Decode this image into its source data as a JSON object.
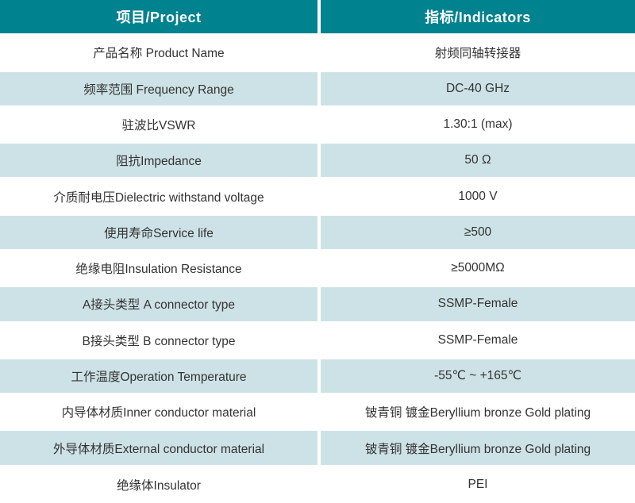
{
  "colors": {
    "header_bg": "#00828F",
    "header_text": "#FFFFFF",
    "row_bg": "#FFFFFF",
    "row_alt_bg": "#CDE2E6",
    "body_text": "#333333"
  },
  "header": {
    "project": "项目/Project",
    "indicators": "指标/Indicators"
  },
  "rows": [
    {
      "project": "产品名称 Product Name",
      "indicator": "射频同轴转接器"
    },
    {
      "project": "频率范围 Frequency Range",
      "indicator": "DC-40 GHz"
    },
    {
      "project": "驻波比VSWR",
      "indicator": "1.30:1 (max)"
    },
    {
      "project": "阻抗Impedance",
      "indicator": "50 Ω"
    },
    {
      "project": "介质耐电压Dielectric withstand voltage",
      "indicator": "1000 V"
    },
    {
      "project": "使用寿命Service life",
      "indicator": "≥500"
    },
    {
      "project": "绝缘电阻Insulation Resistance",
      "indicator": "≥5000MΩ"
    },
    {
      "project": "A接头类型 A connector type",
      "indicator": "SSMP-Female"
    },
    {
      "project": "B接头类型 B connector type",
      "indicator": "SSMP-Female"
    },
    {
      "project": "工作温度Operation Temperature",
      "indicator": "-55℃ ~ +165℃"
    },
    {
      "project": "内导体材质Inner conductor material",
      "indicator": "铍青铜 镀金Beryllium bronze Gold plating"
    },
    {
      "project": "外导体材质External conductor material",
      "indicator": "铍青铜 镀金Beryllium bronze Gold plating"
    },
    {
      "project": "绝缘体Insulator",
      "indicator": "PEI"
    }
  ]
}
